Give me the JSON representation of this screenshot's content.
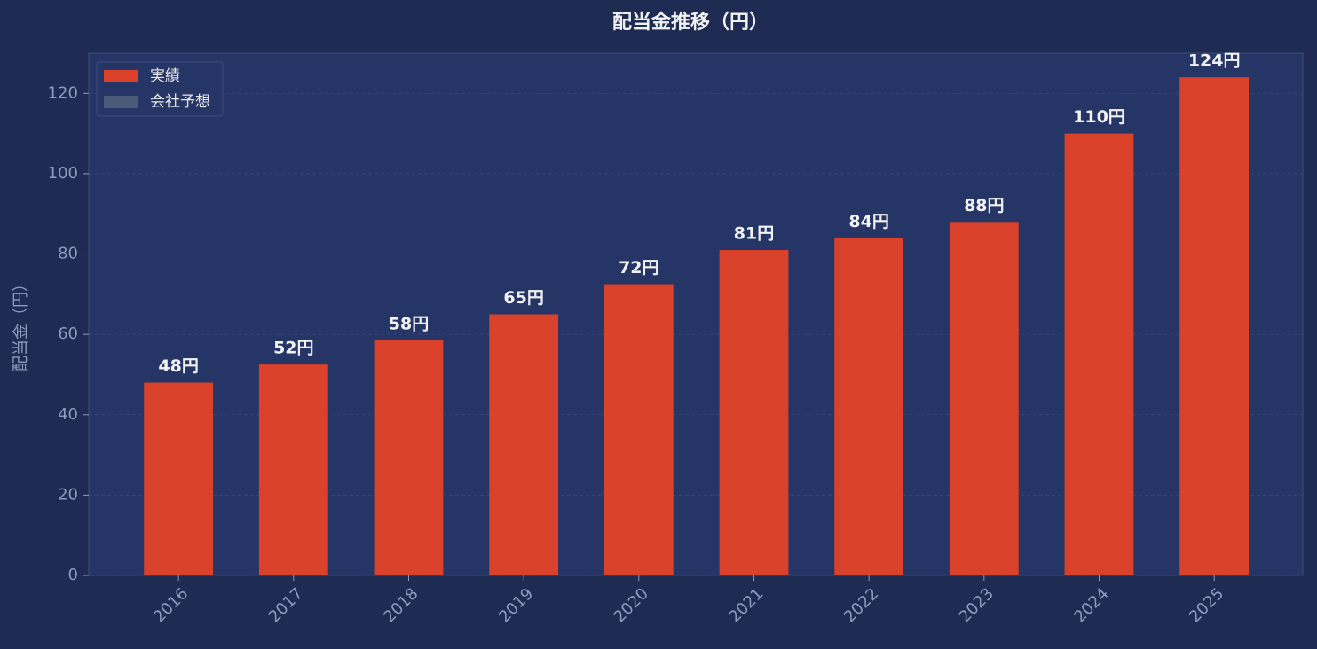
{
  "chart_data": {
    "type": "bar",
    "title": "配当金推移（円）",
    "y_label": "配当金（円）",
    "categories": [
      "2016",
      "2017",
      "2018",
      "2019",
      "2020",
      "2021",
      "2022",
      "2023",
      "2024",
      "2025"
    ],
    "series": [
      {
        "name": "実績",
        "color": "#d9412b",
        "values": [
          48,
          52.5,
          58.5,
          65,
          72.5,
          81,
          84,
          88,
          110,
          124
        ],
        "value_labels": [
          "48円",
          "52円",
          "58円",
          "65円",
          "72円",
          "81円",
          "84円",
          "88円",
          "110円",
          "124円"
        ]
      },
      {
        "name": "会社予想",
        "color": "#4a5a78",
        "values": [
          null,
          null,
          null,
          null,
          null,
          null,
          null,
          null,
          null,
          null
        ]
      }
    ],
    "ylim": [
      0,
      130
    ],
    "yticks": [
      0,
      20,
      40,
      60,
      80,
      100,
      120
    ],
    "grid": true,
    "legend": "upper left"
  }
}
